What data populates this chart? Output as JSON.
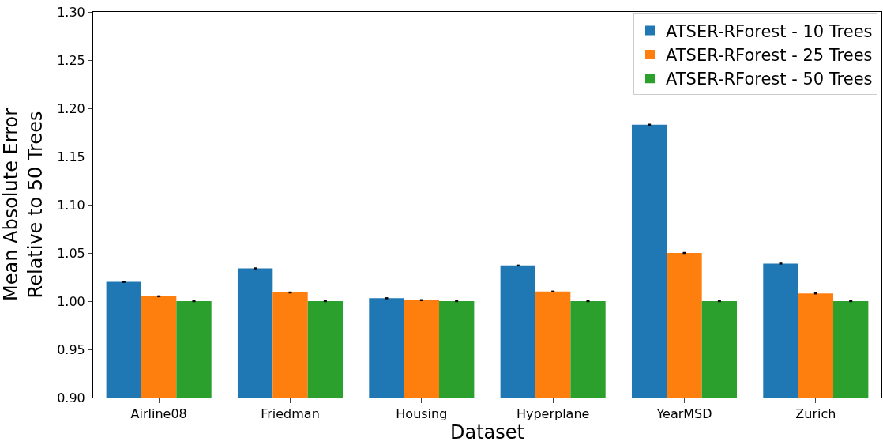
{
  "chart_data": {
    "type": "bar",
    "xlabel": "Dataset",
    "ylabel": "Mean Absolute Error\nRelative to 50 Trees",
    "categories": [
      "Airline08",
      "Friedman",
      "Housing",
      "Hyperplane",
      "YearMSD",
      "Zurich"
    ],
    "series": [
      {
        "name": "ATSER-RForest - 10 Trees",
        "color": "#1f77b4",
        "values": [
          1.02,
          1.034,
          1.003,
          1.037,
          1.183,
          1.039
        ],
        "errors": [
          0.001,
          0.001,
          0.001,
          0.001,
          0.001,
          0.001
        ]
      },
      {
        "name": "ATSER-RForest - 25 Trees",
        "color": "#ff7f0e",
        "values": [
          1.005,
          1.009,
          1.001,
          1.01,
          1.05,
          1.008
        ],
        "errors": [
          0.001,
          0.001,
          0.001,
          0.001,
          0.001,
          0.001
        ]
      },
      {
        "name": "ATSER-RForest - 50 Trees",
        "color": "#2ca02c",
        "values": [
          1.0,
          1.0,
          1.0,
          1.0,
          1.0,
          1.0
        ],
        "errors": [
          0.001,
          0.001,
          0.001,
          0.001,
          0.001,
          0.001
        ]
      }
    ],
    "ylim": [
      0.9,
      1.3
    ],
    "yticks": [
      {
        "value": 0.9,
        "label": "0.90"
      },
      {
        "value": 0.95,
        "label": "0.95"
      },
      {
        "value": 1.0,
        "label": "1.00"
      },
      {
        "value": 1.05,
        "label": "1.05"
      },
      {
        "value": 1.1,
        "label": "1.10"
      },
      {
        "value": 1.15,
        "label": "1.15"
      },
      {
        "value": 1.2,
        "label": "1.20"
      },
      {
        "value": 1.25,
        "label": "1.25"
      },
      {
        "value": 1.3,
        "label": "1.30"
      }
    ],
    "grid": false,
    "legend": "top right"
  }
}
